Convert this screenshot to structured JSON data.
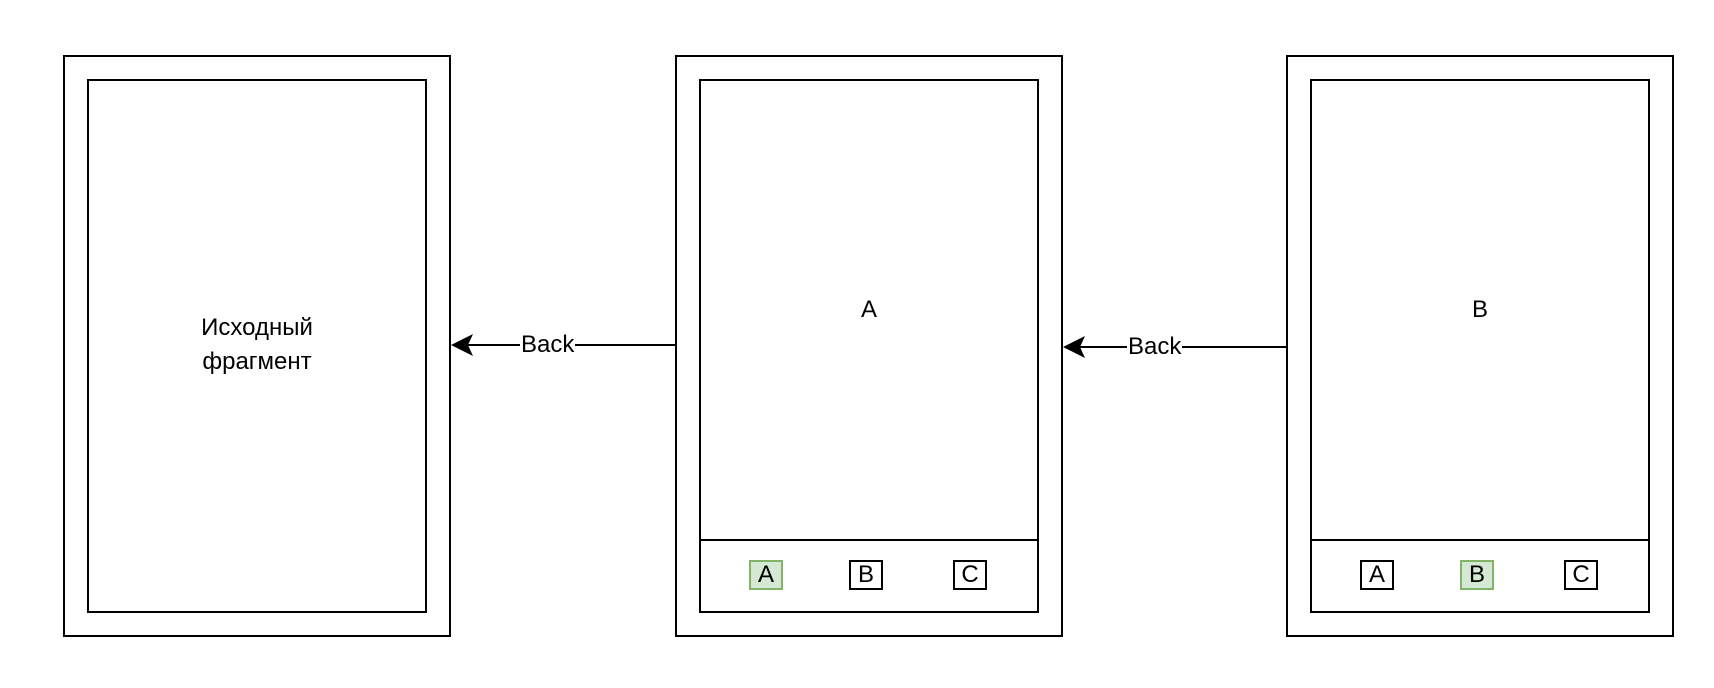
{
  "screens": [
    {
      "label": "Исходный\nфрагмент"
    },
    {
      "label": "A",
      "tabs": [
        "A",
        "B",
        "C"
      ],
      "active_tab": "A"
    },
    {
      "label": "B",
      "tabs": [
        "A",
        "B",
        "C"
      ],
      "active_tab": "B"
    }
  ],
  "edges": [
    {
      "label": "Back",
      "from": "screen-a",
      "to": "source-fragment"
    },
    {
      "label": "Back",
      "from": "screen-b",
      "to": "screen-a"
    }
  ],
  "colors": {
    "active_fill": "#d5e8d4",
    "active_stroke": "#82b366",
    "line": "#000000"
  }
}
